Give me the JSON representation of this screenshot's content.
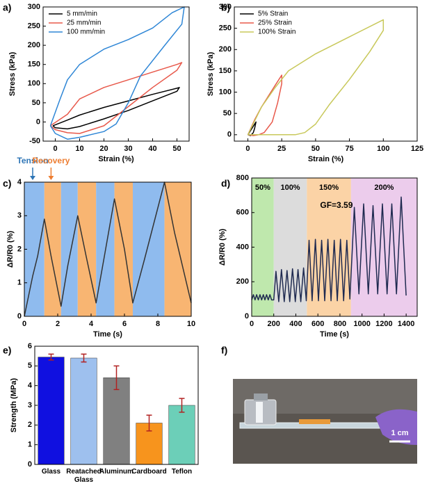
{
  "chart_data": [
    {
      "panel_label": "a)",
      "type": "line",
      "x_label": "Strain (%)",
      "y_label": "Stress (kPa)",
      "xlim": [
        -5,
        55
      ],
      "xticks": [
        0,
        10,
        20,
        30,
        40,
        50
      ],
      "ylim": [
        -50,
        300
      ],
      "yticks": [
        -50,
        0,
        50,
        100,
        150,
        200,
        250,
        300
      ],
      "legend": "upper left",
      "series": [
        {
          "name": "5 mm/min",
          "color": "#000000",
          "x": [
            -1,
            5,
            10,
            20,
            30,
            40,
            50,
            51,
            50,
            40,
            30,
            20,
            10,
            5,
            0,
            -1
          ],
          "values": [
            -10,
            5,
            18,
            38,
            55,
            72,
            88,
            90,
            80,
            55,
            30,
            8,
            -12,
            -18,
            -15,
            -10
          ]
        },
        {
          "name": "25 mm/min",
          "color": "#e8584a",
          "x": [
            -2,
            5,
            10,
            20,
            30,
            40,
            50,
            52,
            50,
            40,
            30,
            20,
            10,
            5,
            0,
            -2
          ],
          "values": [
            -10,
            20,
            60,
            90,
            110,
            130,
            150,
            155,
            135,
            90,
            40,
            -10,
            -30,
            -28,
            -20,
            -10
          ]
        },
        {
          "name": "100 mm/min",
          "color": "#2e86d6",
          "x": [
            -2,
            2,
            5,
            10,
            20,
            30,
            40,
            48,
            53,
            52,
            45,
            35,
            30,
            25,
            20,
            10,
            5,
            0,
            -2
          ],
          "values": [
            -10,
            60,
            110,
            150,
            190,
            215,
            245,
            285,
            300,
            255,
            200,
            120,
            50,
            -5,
            -25,
            -40,
            -45,
            -30,
            -10
          ]
        }
      ]
    },
    {
      "panel_label": "b)",
      "type": "line",
      "x_label": "Strain (%)",
      "y_label": "Stress (kPa)",
      "xlim": [
        -10,
        125
      ],
      "xticks": [
        0,
        25,
        50,
        75,
        100,
        125
      ],
      "ylim": [
        -15,
        300
      ],
      "yticks": [
        0,
        50,
        100,
        150,
        200,
        250,
        300
      ],
      "legend": "upper left",
      "series": [
        {
          "name": "5% Strain",
          "color": "#000000",
          "x": [
            0,
            2,
            4,
            6,
            5,
            4,
            2,
            0
          ],
          "values": [
            0,
            10,
            20,
            30,
            15,
            5,
            -2,
            0
          ]
        },
        {
          "name": "25% Strain",
          "color": "#e8584a",
          "x": [
            0,
            5,
            10,
            15,
            20,
            25,
            25,
            22,
            18,
            12,
            8,
            4,
            0
          ],
          "values": [
            0,
            35,
            65,
            90,
            115,
            140,
            120,
            75,
            30,
            5,
            0,
            -2,
            0
          ]
        },
        {
          "name": "100% Strain",
          "color": "#c8c85a",
          "x": [
            0,
            10,
            20,
            30,
            50,
            75,
            100,
            100,
            90,
            75,
            60,
            50,
            42,
            35,
            20,
            5,
            0
          ],
          "values": [
            0,
            65,
            110,
            150,
            190,
            230,
            270,
            245,
            195,
            130,
            70,
            25,
            5,
            0,
            0,
            0,
            0
          ]
        }
      ]
    },
    {
      "panel_label": "c)",
      "type": "line",
      "x_label": "Time (s)",
      "y_label": "ΔR/R0 (%)",
      "xlim": [
        0,
        10
      ],
      "xticks": [
        0,
        2,
        4,
        6,
        8,
        10
      ],
      "ylim": [
        0,
        4
      ],
      "yticks": [
        0,
        1,
        2,
        3,
        4
      ],
      "spans": [
        {
          "start": 0,
          "end": 1.2,
          "color": "#8fbbee"
        },
        {
          "start": 1.2,
          "end": 2.2,
          "color": "#f8b572"
        },
        {
          "start": 2.2,
          "end": 3.2,
          "color": "#8fbbee"
        },
        {
          "start": 3.2,
          "end": 4.3,
          "color": "#f8b572"
        },
        {
          "start": 4.3,
          "end": 5.4,
          "color": "#8fbbee"
        },
        {
          "start": 5.4,
          "end": 6.5,
          "color": "#f8b572"
        },
        {
          "start": 6.5,
          "end": 8.4,
          "color": "#8fbbee"
        },
        {
          "start": 8.4,
          "end": 10,
          "color": "#f8b572"
        }
      ],
      "annotations": [
        {
          "text": "Tension",
          "x": 0.5,
          "color": "#2e75b6"
        },
        {
          "text": "Recovery",
          "x": 1.6,
          "color": "#ed7d31"
        }
      ],
      "series": [
        {
          "color": "#333333",
          "x": [
            0,
            0.5,
            0.8,
            1.2,
            1.6,
            2.2,
            2.6,
            3.2,
            3.7,
            4.3,
            4.8,
            5.4,
            6.0,
            6.5,
            7.2,
            8.4,
            9.0,
            10
          ],
          "values": [
            0,
            1.2,
            1.8,
            2.9,
            1.8,
            0.3,
            1.5,
            3.0,
            1.8,
            0.4,
            1.8,
            3.5,
            2.0,
            0.4,
            1.7,
            4.0,
            2.5,
            0.4
          ]
        }
      ]
    },
    {
      "panel_label": "d)",
      "type": "line",
      "x_label": "Time (s)",
      "y_label": "ΔR/R0 (%)",
      "xlim": [
        0,
        1500
      ],
      "xticks": [
        0,
        200,
        400,
        600,
        800,
        1000,
        1200,
        1400
      ],
      "ylim": [
        0,
        800
      ],
      "yticks": [
        0,
        200,
        400,
        600,
        800
      ],
      "spans": [
        {
          "start": 0,
          "end": 200,
          "color": "#bfe8ad",
          "label": "50%"
        },
        {
          "start": 200,
          "end": 500,
          "color": "#dcdcdc",
          "label": "100%"
        },
        {
          "start": 500,
          "end": 900,
          "color": "#fbd3a6",
          "label": "150%"
        },
        {
          "start": 900,
          "end": 1500,
          "color": "#ecccec",
          "label": "200%"
        }
      ],
      "annotations": [
        {
          "text": "GF=3.59",
          "x": 620,
          "y": 640,
          "color": "#000000"
        }
      ],
      "series": [
        {
          "color": "#1f2a50",
          "x": [
            0,
            15,
            30,
            45,
            60,
            75,
            90,
            105,
            120,
            135,
            150,
            165,
            180,
            200,
            220,
            245,
            270,
            295,
            320,
            345,
            370,
            395,
            420,
            445,
            470,
            495,
            520,
            548,
            577,
            605,
            634,
            662,
            691,
            719,
            748,
            776,
            805,
            833,
            862,
            890,
            930,
            972,
            1015,
            1057,
            1100,
            1142,
            1185,
            1227,
            1270,
            1312,
            1355,
            1400
          ],
          "values": [
            95,
            125,
            95,
            125,
            95,
            125,
            95,
            125,
            95,
            125,
            95,
            125,
            95,
            95,
            260,
            85,
            270,
            85,
            265,
            85,
            275,
            85,
            270,
            85,
            280,
            90,
            440,
            90,
            445,
            90,
            440,
            90,
            445,
            90,
            440,
            90,
            445,
            90,
            440,
            100,
            630,
            130,
            650,
            130,
            640,
            130,
            650,
            130,
            650,
            130,
            690,
            120
          ]
        }
      ]
    },
    {
      "panel_label": "e)",
      "type": "bar",
      "y_label": "Strength (MPa)",
      "ylim": [
        0,
        6
      ],
      "yticks": [
        0,
        1,
        2,
        3,
        4,
        5,
        6
      ],
      "categories": [
        "Glass",
        "Reatached Glass",
        "Aluminum",
        "Cardboard",
        "Teflon"
      ],
      "values": [
        5.45,
        5.4,
        4.4,
        2.1,
        3.0
      ],
      "errors": [
        0.15,
        0.2,
        0.6,
        0.4,
        0.35
      ],
      "colors": [
        "#1010e0",
        "#9ec0ee",
        "#808080",
        "#f7941d",
        "#6ccfb8"
      ],
      "error_color": "#b22222"
    }
  ],
  "photo": {
    "panel_label": "f)",
    "scale_label": "1 cm"
  }
}
